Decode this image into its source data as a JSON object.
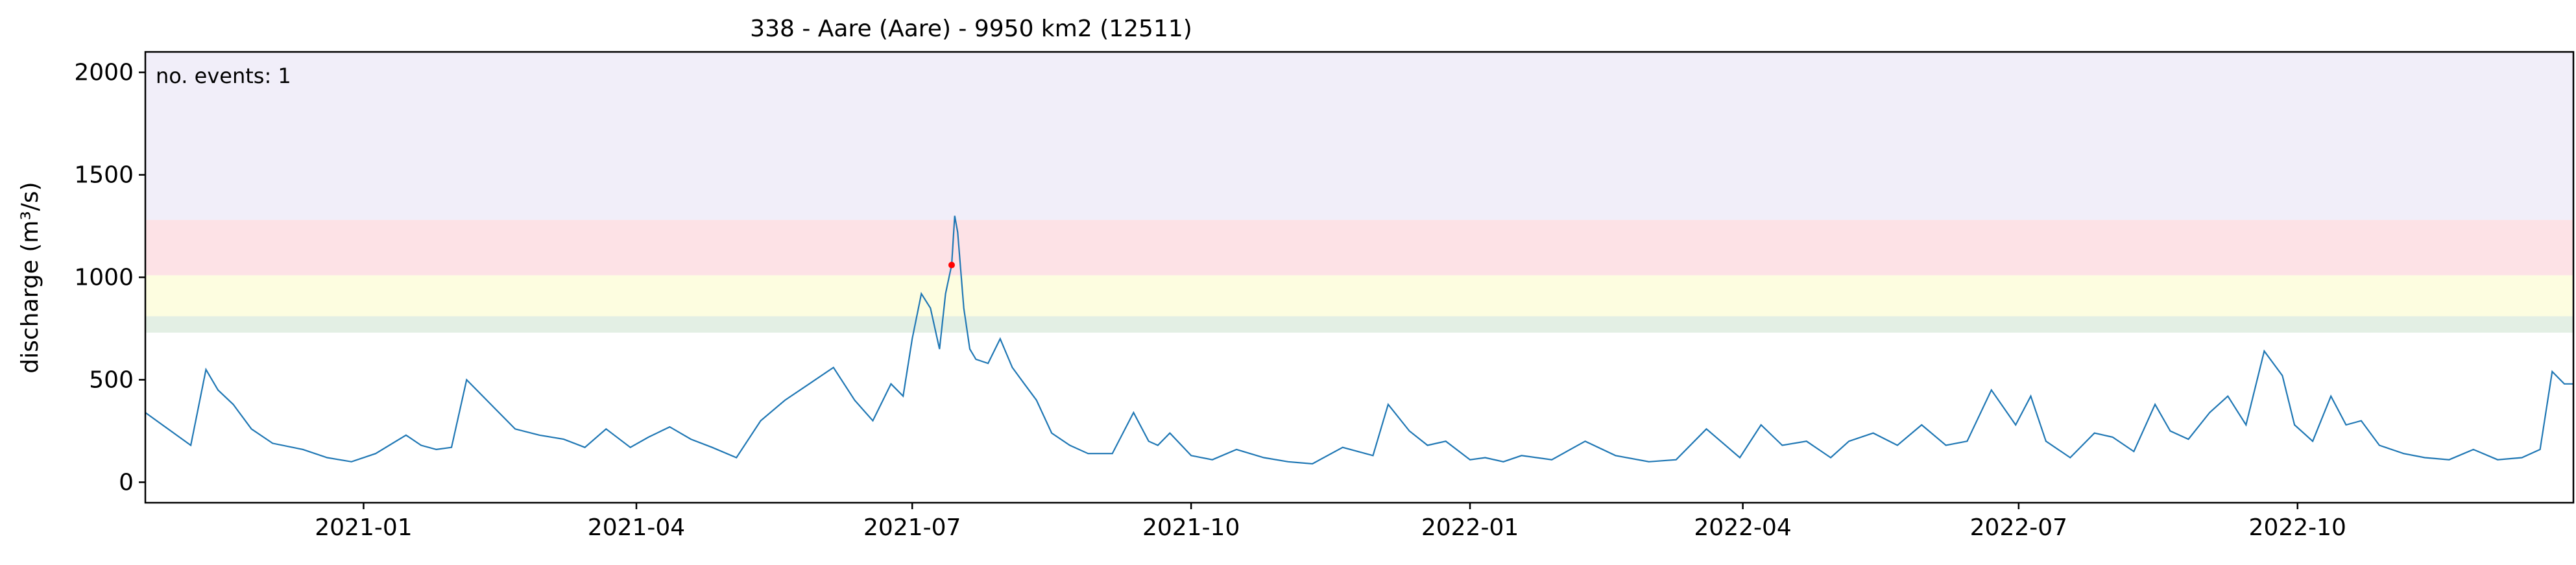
{
  "chart_data": {
    "type": "line",
    "title": "338 - Aare (Aare) - 9950 km2 (12511)",
    "xlabel": "",
    "ylabel": "discharge (m³/s)",
    "xlim": [
      "2020-10-21",
      "2022-12-31"
    ],
    "ylim": [
      -100,
      2100
    ],
    "xticks": [
      "2021-01",
      "2021-04",
      "2021-07",
      "2021-10",
      "2022-01",
      "2022-04",
      "2022-07",
      "2022-10"
    ],
    "yticks": [
      0,
      500,
      1000,
      1500,
      2000
    ],
    "grid": false,
    "annotation": "no. events: 1",
    "annotation_color": "#ff0000",
    "line_color": "#1f77b4",
    "threshold_bands": [
      {
        "from": 730,
        "to": 810,
        "color": "#e3efe4"
      },
      {
        "from": 810,
        "to": 1010,
        "color": "#fdfde0"
      },
      {
        "from": 1010,
        "to": 1280,
        "color": "#fde2e6"
      },
      {
        "from": 1280,
        "to": 2100,
        "color": "#f1eef9"
      }
    ],
    "events": [
      {
        "x": "2021-07-14",
        "y": 1060,
        "color": "#ff0000"
      }
    ],
    "series": [
      {
        "x": [
          "2020-10-21",
          "2020-11-05",
          "2020-11-10",
          "2020-11-14",
          "2020-11-19",
          "2020-11-25",
          "2020-12-02",
          "2020-12-12",
          "2020-12-20",
          "2020-12-28",
          "2021-01-05",
          "2021-01-15",
          "2021-01-20",
          "2021-01-25",
          "2021-01-30",
          "2021-02-04",
          "2021-02-12",
          "2021-02-20",
          "2021-02-28",
          "2021-03-08",
          "2021-03-15",
          "2021-03-22",
          "2021-03-30",
          "2021-04-05",
          "2021-04-12",
          "2021-04-19",
          "2021-04-26",
          "2021-05-04",
          "2021-05-12",
          "2021-05-20",
          "2021-05-28",
          "2021-06-05",
          "2021-06-12",
          "2021-06-18",
          "2021-06-24",
          "2021-06-28",
          "2021-07-01",
          "2021-07-04",
          "2021-07-07",
          "2021-07-10",
          "2021-07-12",
          "2021-07-14",
          "2021-07-15",
          "2021-07-16",
          "2021-07-18",
          "2021-07-20",
          "2021-07-22",
          "2021-07-26",
          "2021-07-30",
          "2021-08-03",
          "2021-08-07",
          "2021-08-11",
          "2021-08-16",
          "2021-08-22",
          "2021-08-28",
          "2021-09-05",
          "2021-09-12",
          "2021-09-17",
          "2021-09-20",
          "2021-09-24",
          "2021-10-01",
          "2021-10-08",
          "2021-10-16",
          "2021-10-25",
          "2021-11-02",
          "2021-11-10",
          "2021-11-20",
          "2021-11-30",
          "2021-12-05",
          "2021-12-12",
          "2021-12-18",
          "2021-12-24",
          "2022-01-01",
          "2022-01-06",
          "2022-01-12",
          "2022-01-18",
          "2022-01-28",
          "2022-02-08",
          "2022-02-18",
          "2022-03-01",
          "2022-03-10",
          "2022-03-20",
          "2022-03-31",
          "2022-04-07",
          "2022-04-14",
          "2022-04-22",
          "2022-04-30",
          "2022-05-06",
          "2022-05-14",
          "2022-05-22",
          "2022-05-30",
          "2022-06-07",
          "2022-06-14",
          "2022-06-22",
          "2022-06-30",
          "2022-07-05",
          "2022-07-10",
          "2022-07-18",
          "2022-07-26",
          "2022-08-01",
          "2022-08-08",
          "2022-08-15",
          "2022-08-20",
          "2022-08-26",
          "2022-09-02",
          "2022-09-08",
          "2022-09-14",
          "2022-09-20",
          "2022-09-26",
          "2022-09-30",
          "2022-10-06",
          "2022-10-12",
          "2022-10-17",
          "2022-10-22",
          "2022-10-28",
          "2022-11-05",
          "2022-11-12",
          "2022-11-20",
          "2022-11-28",
          "2022-12-06",
          "2022-12-14",
          "2022-12-20",
          "2022-12-24",
          "2022-12-28",
          "2022-12-31"
        ],
        "values": [
          340,
          180,
          550,
          450,
          380,
          260,
          190,
          160,
          120,
          100,
          140,
          230,
          180,
          160,
          170,
          500,
          380,
          260,
          230,
          210,
          170,
          260,
          170,
          220,
          270,
          210,
          170,
          120,
          300,
          400,
          480,
          560,
          400,
          300,
          480,
          420,
          700,
          920,
          850,
          650,
          920,
          1060,
          1300,
          1220,
          850,
          650,
          600,
          580,
          700,
          560,
          480,
          400,
          240,
          180,
          140,
          140,
          340,
          200,
          180,
          240,
          130,
          110,
          160,
          120,
          100,
          90,
          170,
          130,
          380,
          250,
          180,
          200,
          110,
          120,
          100,
          130,
          110,
          200,
          130,
          100,
          110,
          260,
          120,
          280,
          180,
          200,
          120,
          200,
          240,
          180,
          280,
          180,
          200,
          450,
          280,
          420,
          200,
          120,
          240,
          220,
          150,
          380,
          250,
          210,
          340,
          420,
          280,
          640,
          520,
          280,
          200,
          420,
          280,
          300,
          180,
          140,
          120,
          110,
          160,
          110,
          120,
          160,
          540,
          480,
          480
        ]
      }
    ]
  }
}
